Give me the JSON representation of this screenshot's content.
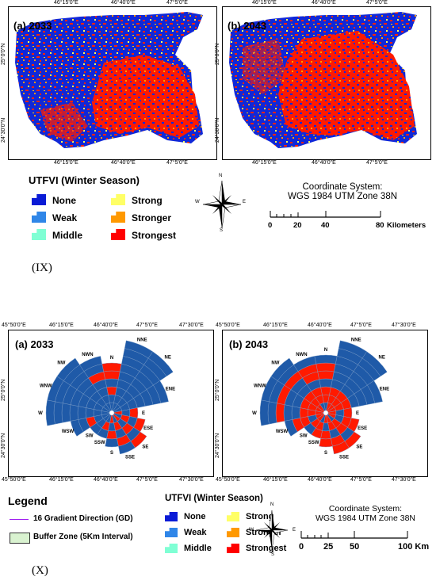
{
  "section_IX": {
    "label": "(IX)",
    "maps": [
      {
        "title": "(a) 2033"
      },
      {
        "title": "(b) 2043"
      }
    ],
    "lon_ticks": [
      "46°15'0\"E",
      "46°40'0\"E",
      "47°5'0\"E"
    ],
    "lat_ticks": [
      "25°0'0\"N",
      "24°30'0\"N"
    ],
    "legend": {
      "title": "UTFVI (Winter Season)",
      "items": [
        {
          "label": "None",
          "color": "#0a1bd6"
        },
        {
          "label": "Weak",
          "color": "#2f86e8"
        },
        {
          "label": "Middle",
          "color": "#7fffd4"
        },
        {
          "label": "Strong",
          "color": "#ffff66"
        },
        {
          "label": "Stronger",
          "color": "#ff9900"
        },
        {
          "label": "Strongest",
          "color": "#ff0000"
        }
      ]
    },
    "coordinate_system": [
      "Coordinate System:",
      "WGS 1984 UTM Zone 38N"
    ],
    "scale": {
      "ticks": [
        "0",
        "20",
        "40",
        "80"
      ],
      "unit": "Kilometers"
    }
  },
  "section_X": {
    "label": "(X)",
    "maps": [
      {
        "title": "(a) 2033"
      },
      {
        "title": "(b) 2043"
      }
    ],
    "lon_ticks": [
      "45°50'0\"E",
      "46°15'0\"E",
      "46°40'0\"E",
      "47°5'0\"E",
      "47°30'0\"E"
    ],
    "lat_ticks": [
      "25°0'0\"N",
      "24°30'0\"N"
    ],
    "directions": [
      "N",
      "NNE",
      "NE",
      "ENE",
      "E",
      "ESE",
      "SE",
      "SSE",
      "S",
      "SSW",
      "SW",
      "WSW",
      "W",
      "WNW",
      "NW",
      "NWN"
    ],
    "legend_left": {
      "title": "Legend",
      "items": [
        {
          "label": "16 Gradient Direction (GD)",
          "color": "#a020f0"
        },
        {
          "label": "Buffer Zone (5Km Interval)",
          "color": "#d9f2d0"
        }
      ]
    },
    "legend": {
      "title": "UTFVI (Winter Season)",
      "items": [
        {
          "label": "None",
          "color": "#0a1bd6"
        },
        {
          "label": "Weak",
          "color": "#2f86e8"
        },
        {
          "label": "Middle",
          "color": "#7fffd4"
        },
        {
          "label": "Strong",
          "color": "#ffff66"
        },
        {
          "label": "Stronger",
          "color": "#ff9900"
        },
        {
          "label": "Strongest",
          "color": "#ff0000"
        }
      ]
    },
    "coordinate_system": [
      "Coordinate System:",
      "WGS 1984 UTM Zone 38N"
    ],
    "scale": {
      "ticks": [
        "0",
        "25",
        "50",
        "100 Km"
      ]
    }
  },
  "compass": {
    "n": "N",
    "s": "S",
    "e": "E",
    "w": "W"
  }
}
